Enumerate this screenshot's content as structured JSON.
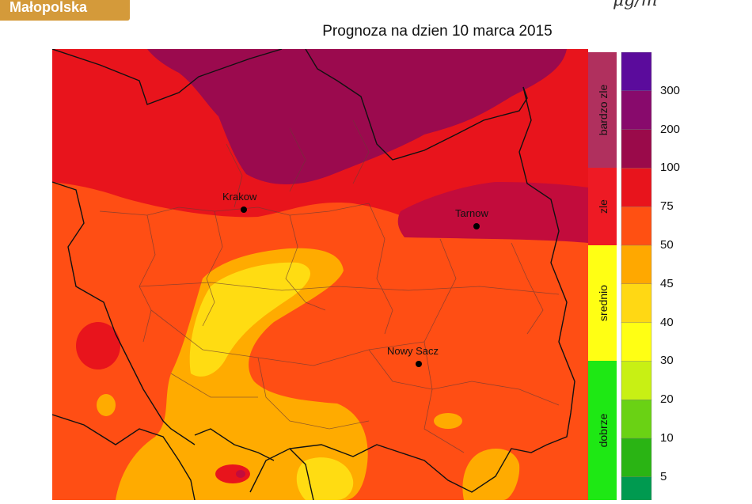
{
  "header": {
    "region_badge": "Małopolska",
    "unit_fragment": "µg/m",
    "title": "Prognoza na dzien  10 marca 2015"
  },
  "map": {
    "cities": [
      {
        "name": "Krakow"
      },
      {
        "name": "Tarnow"
      },
      {
        "name": "Nowy Sacz"
      }
    ],
    "zone_colors": {
      "very_high": "#9b0a4e",
      "high": "#e8141c",
      "elevated": "#ff4e14",
      "moderate": "#ffab00",
      "low": "#ffdc12"
    }
  },
  "legend": {
    "categories": [
      {
        "label": "bardzo zle",
        "color": "#b0305e"
      },
      {
        "label": "zle",
        "color": "#ee1a24"
      },
      {
        "label": "srednio",
        "color": "#ffff14"
      },
      {
        "label": "dobrze",
        "color": "#1ee814"
      }
    ],
    "scale_colors": [
      "#5b0b9c",
      "#880a6c",
      "#9a0a4a",
      "#e8141c",
      "#ff5012",
      "#ffa800",
      "#ffd814",
      "#ffff14",
      "#c8f014",
      "#6ad214",
      "#2ab414",
      "#009a50"
    ],
    "tick_labels": [
      "300",
      "200",
      "100",
      "75",
      "50",
      "45",
      "40",
      "30",
      "20",
      "10",
      "5"
    ]
  }
}
